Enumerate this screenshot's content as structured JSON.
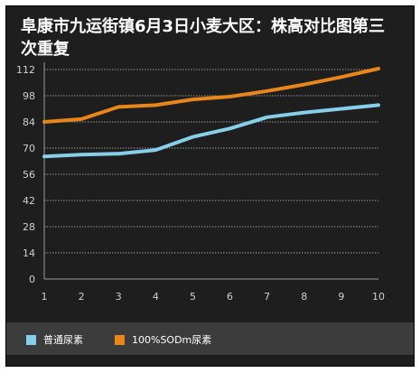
{
  "chart_data": {
    "type": "line",
    "title": "阜康市九运街镇6月3日小麦大区：株高对比图第三次重复",
    "xlabel": "",
    "ylabel": "",
    "x": [
      1,
      2,
      3,
      4,
      5,
      6,
      7,
      8,
      9,
      10
    ],
    "xticks": [
      "1",
      "2",
      "3",
      "4",
      "5",
      "6",
      "7",
      "8",
      "9",
      "10"
    ],
    "yticks": [
      "0",
      "14",
      "28",
      "42",
      "56",
      "70",
      "84",
      "98",
      "112"
    ],
    "ylim": [
      0,
      112
    ],
    "grid": true,
    "legend": "bottom",
    "series": [
      {
        "name": "普通尿素",
        "color": "#87ceeb",
        "values": [
          65.5,
          66.5,
          67,
          69,
          76,
          80.5,
          86.5,
          89,
          91,
          93
        ]
      },
      {
        "name": "100%SODm尿素",
        "color": "#e8861a",
        "values": [
          84,
          85.5,
          92,
          93,
          96,
          97.5,
          100.5,
          104,
          108,
          112.5
        ]
      }
    ]
  }
}
